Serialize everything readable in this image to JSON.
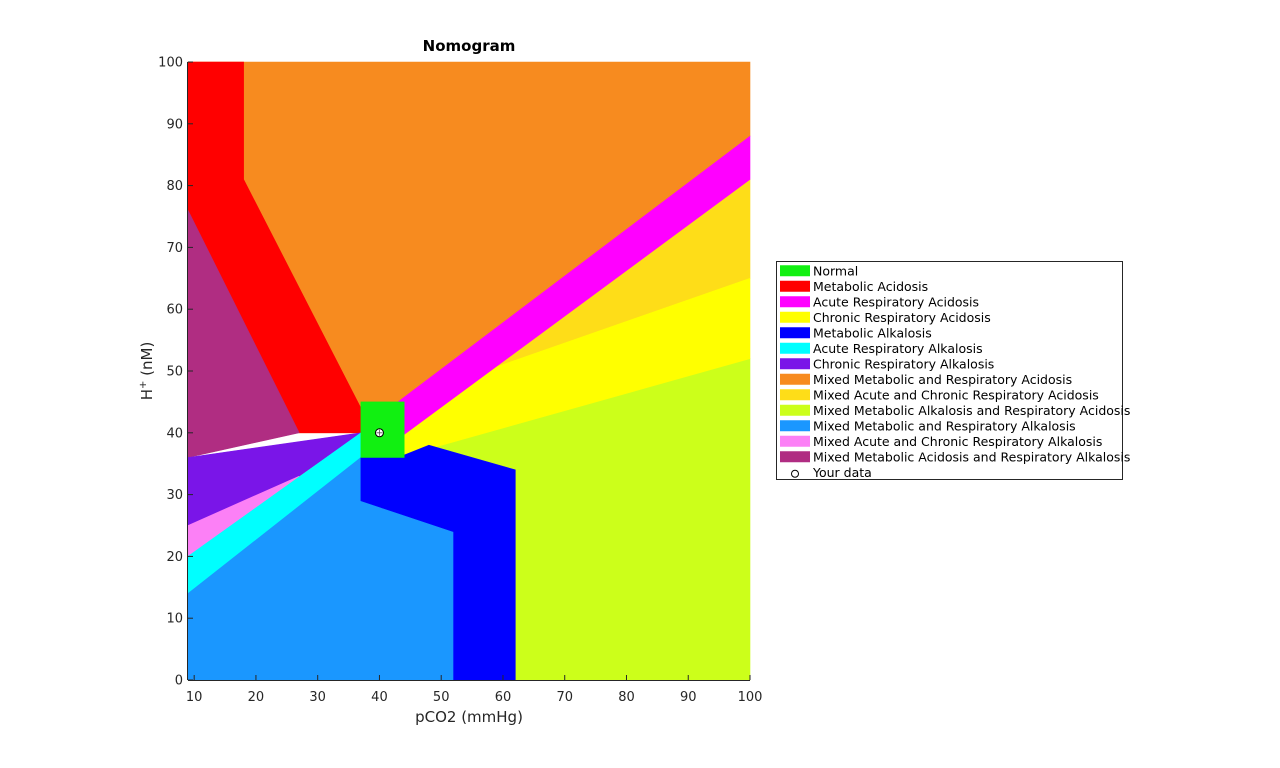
{
  "chart_data": {
    "type": "area",
    "title": "Nomogram",
    "xlabel": "pCO2 (mmHg)",
    "ylabel_base": "H",
    "ylabel_sup": "+",
    "ylabel_rest": " (nM)",
    "xlim": [
      9,
      100
    ],
    "ylim": [
      0,
      100
    ],
    "xticks": [
      10,
      20,
      30,
      40,
      50,
      60,
      70,
      80,
      90,
      100
    ],
    "yticks": [
      0,
      10,
      20,
      30,
      40,
      50,
      60,
      70,
      80,
      90,
      100
    ],
    "legend_position": "right",
    "legend": [
      {
        "label": "Normal",
        "color": "#11f011"
      },
      {
        "label": "Metabolic Acidosis",
        "color": "#ff0000"
      },
      {
        "label": "Acute Respiratory Acidosis",
        "color": "#ff00ff"
      },
      {
        "label": "Chronic Respiratory Acidosis",
        "color": "#ffff00"
      },
      {
        "label": "Metabolic Alkalosis",
        "color": "#0000ff"
      },
      {
        "label": "Acute Respiratory Alkalosis",
        "color": "#00ffff"
      },
      {
        "label": "Chronic Respiratory Alkalosis",
        "color": "#7a15e8"
      },
      {
        "label": "Mixed Metabolic and Respiratory Acidosis",
        "color": "#f78b1f"
      },
      {
        "label": "Mixed Acute and Chronic Respiratory Acidosis",
        "color": "#fedd18"
      },
      {
        "label": "Mixed Metabolic Alkalosis and Respiratory Acidosis",
        "color": "#ccff1a"
      },
      {
        "label": "Mixed Metabolic and Respiratory Alkalosis",
        "color": "#1a97ff"
      },
      {
        "label": "Mixed Acute and Chronic Respiratory Alkalosis",
        "color": "#fc80f6"
      },
      {
        "label": "Mixed Metabolic Acidosis and Respiratory Alkalosis",
        "color": "#b02d82"
      },
      {
        "label": "Your data",
        "marker": "circle"
      }
    ],
    "regions": [
      {
        "color": "#ccff1a",
        "points": [
          [
            9,
            0
          ],
          [
            100,
            0
          ],
          [
            100,
            52
          ],
          [
            40,
            38
          ],
          [
            40,
            36
          ],
          [
            9,
            36
          ]
        ]
      },
      {
        "color": "#f78b1f",
        "points": [
          [
            9,
            100
          ],
          [
            100,
            100
          ],
          [
            100,
            88
          ],
          [
            41,
            40
          ],
          [
            9,
            40
          ]
        ]
      },
      {
        "color": "#fedd18",
        "points": [
          [
            43,
            40
          ],
          [
            100,
            81
          ],
          [
            100,
            65
          ],
          [
            57,
            50
          ]
        ]
      },
      {
        "color": "#ffff00",
        "points": [
          [
            43,
            39
          ],
          [
            57,
            50
          ],
          [
            100,
            65
          ],
          [
            100,
            52
          ],
          [
            43,
            36
          ]
        ]
      },
      {
        "color": "#ff00ff",
        "points": [
          [
            43,
            39
          ],
          [
            100,
            81
          ],
          [
            100,
            88
          ],
          [
            43,
            45
          ]
        ]
      },
      {
        "color": "#ff0000",
        "points": [
          [
            9,
            100
          ],
          [
            18,
            100
          ],
          [
            18,
            81
          ],
          [
            37,
            44
          ],
          [
            37,
            40
          ],
          [
            27,
            40
          ],
          [
            9,
            76
          ]
        ]
      },
      {
        "color": "#b02d82",
        "points": [
          [
            9,
            76
          ],
          [
            27,
            40
          ],
          [
            9,
            36
          ]
        ]
      },
      {
        "color": "#7a15e8",
        "points": [
          [
            9,
            36
          ],
          [
            37,
            40
          ],
          [
            27,
            33
          ],
          [
            9,
            25
          ]
        ]
      },
      {
        "color": "#fc80f6",
        "points": [
          [
            9,
            25
          ],
          [
            27,
            33
          ],
          [
            9,
            20
          ]
        ]
      },
      {
        "color": "#00ffff",
        "points": [
          [
            9,
            20
          ],
          [
            37,
            40
          ],
          [
            37,
            36
          ],
          [
            9,
            14
          ]
        ]
      },
      {
        "color": "#1a97ff",
        "points": [
          [
            9,
            0
          ],
          [
            52,
            0
          ],
          [
            52,
            24
          ],
          [
            37,
            29
          ],
          [
            37,
            36
          ],
          [
            9,
            14
          ]
        ]
      },
      {
        "color": "#0000ff",
        "points": [
          [
            37,
            36
          ],
          [
            37,
            29
          ],
          [
            52,
            24
          ],
          [
            52,
            0
          ],
          [
            62,
            0
          ],
          [
            62,
            34
          ],
          [
            48,
            38
          ],
          [
            43,
            36
          ]
        ]
      },
      {
        "color": "#11f011",
        "points": [
          [
            37,
            36
          ],
          [
            44,
            36
          ],
          [
            44,
            45
          ],
          [
            37,
            45
          ]
        ]
      }
    ],
    "your_data": {
      "x": 40,
      "y": 40
    }
  }
}
